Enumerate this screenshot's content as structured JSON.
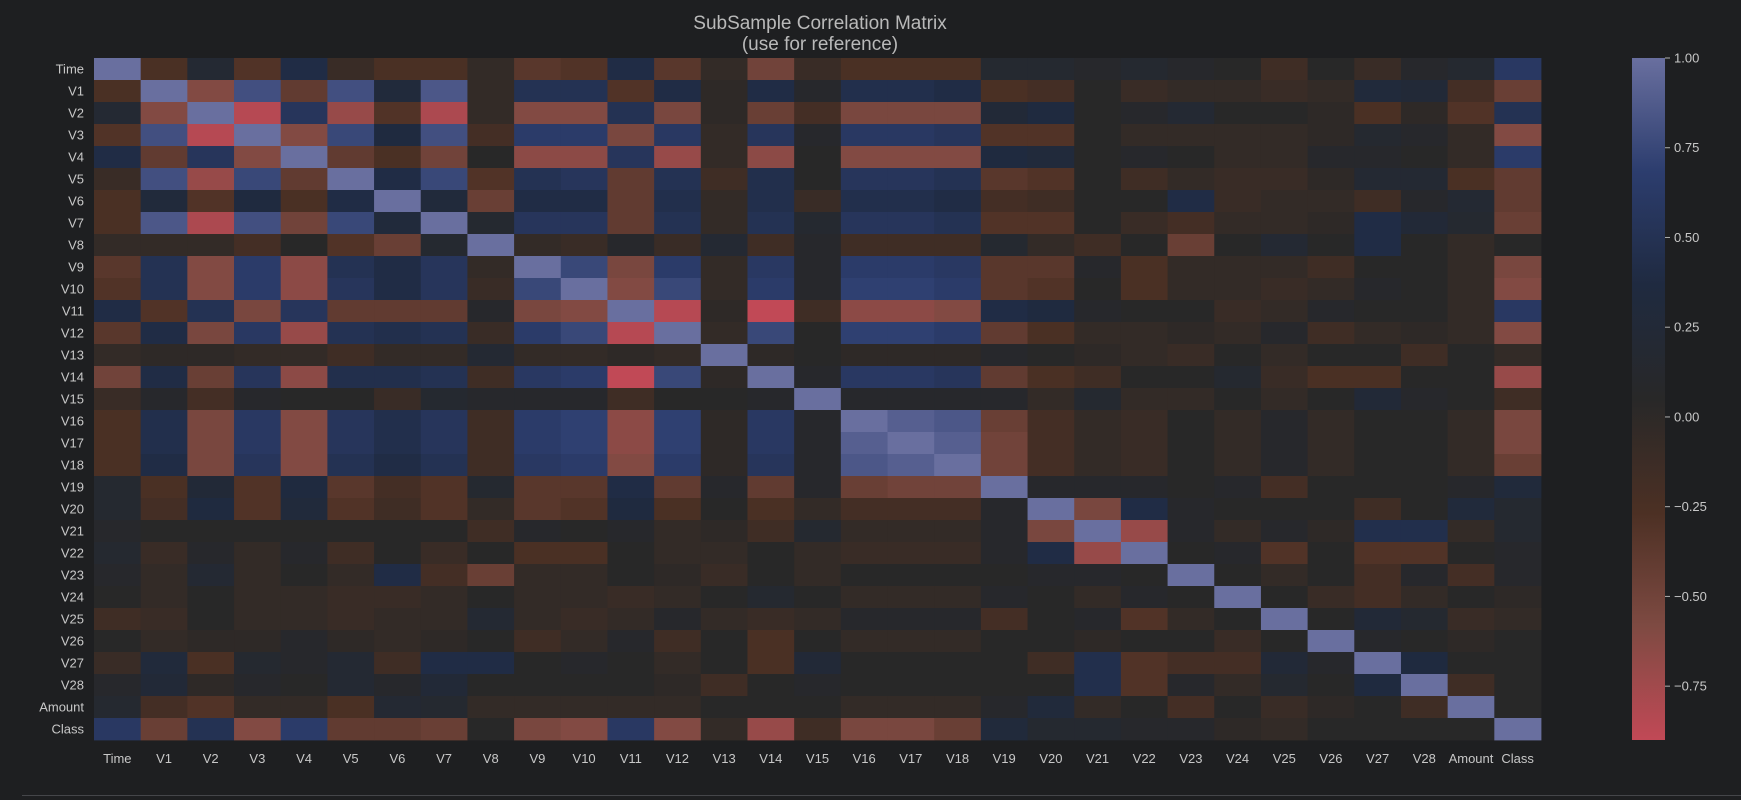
{
  "chart_data": {
    "type": "heatmap",
    "title": "SubSample Correlation Matrix",
    "subtitle": "(use for reference)",
    "labels": [
      "Time",
      "V1",
      "V2",
      "V3",
      "V4",
      "V5",
      "V6",
      "V7",
      "V8",
      "V9",
      "V10",
      "V11",
      "V12",
      "V13",
      "V14",
      "V15",
      "V16",
      "V17",
      "V18",
      "V19",
      "V20",
      "V21",
      "V22",
      "V23",
      "V24",
      "V25",
      "V26",
      "V27",
      "V28",
      "Amount",
      "Class"
    ],
    "vmin": -0.9,
    "vmax": 1.0,
    "colorbar_ticks": [
      "1.00",
      "0.75",
      "0.50",
      "0.25",
      "0.00",
      "−0.25",
      "−0.50",
      "−0.75"
    ],
    "colorbar_tick_values": [
      1.0,
      0.75,
      0.5,
      0.25,
      0.0,
      -0.25,
      -0.5,
      -0.75
    ],
    "colormap": [
      "#c14956",
      "#7e4a42",
      "#4c3024",
      "#282828",
      "#1f2a40",
      "#2c3d6e",
      "#696f9f"
    ],
    "background": "#1e1f21",
    "matrix": [
      [
        1.0,
        -0.25,
        0.2,
        -0.3,
        0.4,
        -0.1,
        -0.25,
        -0.25,
        -0.05,
        -0.35,
        -0.3,
        0.4,
        -0.35,
        -0.05,
        -0.5,
        -0.1,
        -0.25,
        -0.25,
        -0.25,
        0.15,
        0.15,
        0.1,
        0.15,
        0.1,
        0.05,
        -0.15,
        0.05,
        -0.1,
        0.1,
        0.15,
        0.6
      ],
      [
        -0.25,
        1.0,
        -0.6,
        0.8,
        -0.4,
        0.8,
        0.3,
        0.85,
        -0.05,
        0.5,
        0.5,
        -0.3,
        0.4,
        0.0,
        0.4,
        0.1,
        0.45,
        0.45,
        0.4,
        -0.25,
        -0.2,
        0.05,
        -0.1,
        -0.05,
        -0.05,
        -0.1,
        -0.05,
        0.3,
        0.25,
        -0.2,
        -0.45
      ],
      [
        0.2,
        -0.6,
        1.0,
        -0.85,
        0.55,
        -0.7,
        -0.3,
        -0.8,
        -0.05,
        -0.6,
        -0.6,
        0.5,
        -0.55,
        0.0,
        -0.45,
        -0.2,
        -0.55,
        -0.55,
        -0.55,
        0.25,
        0.35,
        0.05,
        0.1,
        0.2,
        0.05,
        0.05,
        0.0,
        -0.25,
        0.0,
        -0.3,
        0.5
      ],
      [
        -0.3,
        0.8,
        -0.85,
        1.0,
        -0.6,
        0.75,
        0.35,
        0.8,
        -0.2,
        0.65,
        0.65,
        -0.55,
        0.6,
        -0.05,
        0.55,
        0.1,
        0.6,
        0.6,
        0.55,
        -0.3,
        -0.3,
        0.05,
        -0.05,
        -0.05,
        -0.05,
        -0.05,
        0.0,
        0.15,
        0.1,
        -0.05,
        -0.6
      ],
      [
        0.4,
        -0.4,
        0.55,
        -0.6,
        1.0,
        -0.4,
        -0.25,
        -0.5,
        0.05,
        -0.65,
        -0.65,
        0.55,
        -0.7,
        -0.05,
        -0.65,
        0.05,
        -0.6,
        -0.6,
        -0.6,
        0.35,
        0.3,
        0.05,
        0.1,
        0.05,
        -0.05,
        -0.05,
        0.1,
        0.1,
        0.05,
        -0.05,
        0.65
      ],
      [
        -0.1,
        0.8,
        -0.7,
        0.75,
        -0.4,
        1.0,
        0.4,
        0.75,
        -0.3,
        0.5,
        0.55,
        -0.4,
        0.5,
        -0.15,
        0.45,
        0.05,
        0.55,
        0.55,
        0.5,
        -0.35,
        -0.3,
        0.05,
        -0.15,
        -0.05,
        -0.1,
        -0.1,
        0.0,
        0.2,
        0.2,
        -0.25,
        -0.4
      ],
      [
        -0.25,
        0.3,
        -0.3,
        0.35,
        -0.25,
        0.4,
        1.0,
        0.3,
        -0.45,
        0.4,
        0.4,
        -0.4,
        0.45,
        -0.05,
        0.45,
        -0.1,
        0.45,
        0.45,
        0.4,
        -0.2,
        -0.15,
        0.05,
        0.05,
        0.4,
        -0.1,
        -0.05,
        -0.05,
        -0.15,
        0.1,
        0.2,
        -0.4
      ],
      [
        -0.25,
        0.85,
        -0.8,
        0.8,
        -0.5,
        0.75,
        0.3,
        1.0,
        0.15,
        0.55,
        0.55,
        -0.4,
        0.5,
        -0.05,
        0.5,
        0.15,
        0.55,
        0.55,
        0.5,
        -0.3,
        -0.3,
        0.05,
        -0.1,
        -0.2,
        -0.05,
        -0.05,
        0.0,
        0.4,
        0.25,
        0.15,
        -0.45
      ],
      [
        -0.05,
        -0.05,
        -0.05,
        -0.2,
        0.05,
        -0.3,
        -0.45,
        0.15,
        1.0,
        -0.05,
        -0.1,
        0.1,
        -0.1,
        0.2,
        -0.15,
        0.1,
        -0.15,
        -0.15,
        -0.15,
        0.15,
        -0.05,
        -0.15,
        0.05,
        -0.45,
        0.05,
        0.2,
        0.05,
        0.4,
        0.05,
        -0.05,
        0.05
      ],
      [
        -0.35,
        0.5,
        -0.6,
        0.65,
        -0.65,
        0.5,
        0.4,
        0.55,
        -0.05,
        1.0,
        0.75,
        -0.55,
        0.65,
        -0.05,
        0.6,
        0.1,
        0.65,
        0.65,
        0.6,
        -0.35,
        -0.35,
        0.1,
        -0.25,
        -0.05,
        -0.05,
        -0.05,
        -0.15,
        0.05,
        0.05,
        -0.05,
        -0.55
      ],
      [
        -0.3,
        0.5,
        -0.6,
        0.65,
        -0.65,
        0.55,
        0.4,
        0.55,
        -0.1,
        0.75,
        1.0,
        -0.6,
        0.75,
        -0.05,
        0.65,
        0.1,
        0.7,
        0.7,
        0.65,
        -0.35,
        -0.3,
        0.05,
        -0.25,
        -0.05,
        -0.05,
        -0.1,
        -0.05,
        0.1,
        0.05,
        -0.05,
        -0.6
      ],
      [
        0.4,
        -0.3,
        0.5,
        -0.55,
        0.55,
        -0.4,
        -0.4,
        -0.4,
        0.1,
        -0.55,
        -0.6,
        1.0,
        -0.85,
        0.0,
        -0.9,
        -0.15,
        -0.65,
        -0.65,
        -0.6,
        0.4,
        0.35,
        0.1,
        0.05,
        0.05,
        -0.1,
        -0.05,
        0.1,
        0.05,
        0.05,
        -0.05,
        0.6
      ],
      [
        -0.35,
        0.4,
        -0.55,
        0.6,
        -0.7,
        0.5,
        0.45,
        0.5,
        -0.1,
        0.65,
        0.75,
        -0.85,
        1.0,
        -0.05,
        0.75,
        0.05,
        0.7,
        0.7,
        0.65,
        -0.4,
        -0.25,
        -0.05,
        -0.05,
        0.0,
        -0.05,
        0.1,
        -0.15,
        -0.05,
        0.0,
        -0.05,
        -0.6
      ],
      [
        -0.05,
        0.0,
        0.0,
        -0.05,
        -0.05,
        -0.15,
        -0.05,
        -0.05,
        0.2,
        -0.05,
        -0.05,
        0.0,
        -0.05,
        1.0,
        0.0,
        0.05,
        0.0,
        0.0,
        0.0,
        0.1,
        0.05,
        0.0,
        -0.05,
        -0.1,
        0.05,
        -0.05,
        0.05,
        0.05,
        -0.15,
        0.05,
        -0.05
      ],
      [
        -0.5,
        0.4,
        -0.45,
        0.55,
        -0.65,
        0.45,
        0.45,
        0.5,
        -0.15,
        0.6,
        0.65,
        -0.9,
        0.75,
        0.0,
        1.0,
        0.1,
        0.6,
        0.6,
        0.55,
        -0.4,
        -0.25,
        -0.15,
        0.05,
        0.05,
        0.15,
        -0.1,
        -0.25,
        -0.25,
        0.05,
        0.05,
        -0.7
      ],
      [
        -0.1,
        0.1,
        -0.2,
        0.1,
        0.05,
        0.05,
        -0.1,
        0.15,
        0.1,
        0.1,
        0.1,
        -0.15,
        0.05,
        0.05,
        0.1,
        1.0,
        0.1,
        0.1,
        0.1,
        0.1,
        -0.05,
        0.15,
        -0.05,
        -0.05,
        0.05,
        -0.05,
        0.05,
        0.25,
        0.1,
        0.05,
        -0.15
      ],
      [
        -0.25,
        0.45,
        -0.55,
        0.6,
        -0.6,
        0.55,
        0.45,
        0.55,
        -0.15,
        0.65,
        0.7,
        -0.65,
        0.7,
        0.0,
        0.6,
        0.1,
        1.0,
        0.9,
        0.85,
        -0.45,
        -0.2,
        -0.05,
        -0.1,
        0.05,
        -0.05,
        0.1,
        -0.05,
        0.05,
        0.05,
        -0.05,
        -0.55
      ],
      [
        -0.25,
        0.45,
        -0.55,
        0.6,
        -0.6,
        0.55,
        0.45,
        0.55,
        -0.15,
        0.65,
        0.7,
        -0.65,
        0.7,
        0.0,
        0.6,
        0.1,
        0.9,
        1.0,
        0.9,
        -0.5,
        -0.2,
        -0.05,
        -0.1,
        0.05,
        -0.05,
        0.1,
        -0.05,
        0.05,
        0.05,
        -0.05,
        -0.55
      ],
      [
        -0.25,
        0.4,
        -0.55,
        0.55,
        -0.6,
        0.5,
        0.4,
        0.5,
        -0.15,
        0.6,
        0.65,
        -0.6,
        0.65,
        0.0,
        0.55,
        0.1,
        0.85,
        0.9,
        1.0,
        -0.5,
        -0.2,
        -0.05,
        -0.1,
        0.05,
        -0.05,
        0.1,
        -0.05,
        0.05,
        0.05,
        -0.05,
        -0.45
      ],
      [
        0.15,
        -0.25,
        0.25,
        -0.3,
        0.35,
        -0.35,
        -0.2,
        -0.3,
        0.15,
        -0.35,
        -0.35,
        0.4,
        -0.4,
        0.1,
        -0.4,
        0.1,
        -0.45,
        -0.5,
        -0.5,
        1.0,
        0.1,
        0.1,
        0.1,
        0.05,
        0.1,
        -0.2,
        0.05,
        0.05,
        0.05,
        0.1,
        0.3
      ],
      [
        0.15,
        -0.2,
        0.35,
        -0.3,
        0.3,
        -0.3,
        -0.15,
        -0.3,
        -0.05,
        -0.35,
        -0.3,
        0.35,
        -0.25,
        0.05,
        -0.25,
        -0.05,
        -0.2,
        -0.2,
        -0.2,
        0.1,
        1.0,
        -0.55,
        0.4,
        0.1,
        0.05,
        0.05,
        0.05,
        -0.15,
        0.05,
        0.3,
        0.15
      ],
      [
        0.1,
        0.05,
        0.05,
        0.05,
        0.05,
        0.05,
        0.05,
        0.05,
        -0.15,
        0.1,
        0.05,
        0.1,
        -0.05,
        0.0,
        -0.15,
        0.15,
        -0.05,
        -0.05,
        -0.05,
        0.1,
        -0.55,
        1.0,
        -0.7,
        0.1,
        -0.05,
        0.1,
        0.0,
        0.45,
        0.45,
        -0.05,
        0.15
      ],
      [
        0.15,
        -0.1,
        0.1,
        -0.05,
        0.1,
        -0.15,
        0.05,
        -0.1,
        0.05,
        -0.25,
        -0.25,
        0.05,
        -0.05,
        -0.05,
        0.05,
        -0.05,
        -0.1,
        -0.1,
        -0.1,
        0.1,
        0.4,
        -0.7,
        1.0,
        0.05,
        0.1,
        -0.3,
        0.05,
        -0.3,
        -0.3,
        0.05,
        0.1
      ],
      [
        0.1,
        -0.05,
        0.2,
        -0.05,
        0.05,
        -0.05,
        0.4,
        -0.2,
        -0.45,
        -0.05,
        -0.05,
        0.05,
        0.0,
        -0.1,
        0.05,
        -0.05,
        0.05,
        0.05,
        0.05,
        0.05,
        0.1,
        0.1,
        0.05,
        1.0,
        0.05,
        -0.05,
        0.05,
        -0.2,
        0.1,
        -0.2,
        0.1
      ],
      [
        0.05,
        -0.05,
        0.05,
        -0.05,
        -0.05,
        -0.1,
        -0.1,
        -0.05,
        0.05,
        -0.05,
        -0.05,
        -0.1,
        -0.05,
        0.05,
        0.15,
        0.05,
        -0.05,
        -0.05,
        -0.05,
        0.1,
        0.05,
        -0.05,
        0.1,
        0.05,
        1.0,
        0.05,
        -0.1,
        -0.2,
        -0.05,
        0.05,
        0.0
      ],
      [
        -0.15,
        -0.1,
        0.05,
        -0.05,
        -0.05,
        -0.1,
        -0.05,
        -0.05,
        0.2,
        -0.05,
        -0.1,
        -0.05,
        0.1,
        -0.05,
        -0.1,
        -0.05,
        0.1,
        0.1,
        0.1,
        -0.2,
        0.05,
        0.1,
        -0.3,
        -0.05,
        0.05,
        1.0,
        0.05,
        0.25,
        0.15,
        -0.1,
        -0.05
      ],
      [
        0.05,
        -0.05,
        0.0,
        0.0,
        0.1,
        0.0,
        -0.05,
        0.0,
        0.05,
        -0.15,
        -0.05,
        0.1,
        -0.15,
        0.05,
        -0.25,
        0.05,
        -0.05,
        -0.05,
        -0.05,
        0.05,
        0.05,
        0.0,
        0.05,
        0.05,
        -0.1,
        0.05,
        1.0,
        0.1,
        0.05,
        0.0,
        0.05
      ],
      [
        -0.1,
        0.3,
        -0.25,
        0.15,
        0.1,
        0.2,
        -0.15,
        0.4,
        0.4,
        0.05,
        0.1,
        0.05,
        -0.05,
        0.05,
        -0.25,
        0.25,
        0.05,
        0.05,
        0.05,
        0.05,
        -0.15,
        0.45,
        -0.3,
        -0.2,
        -0.2,
        0.25,
        0.1,
        1.0,
        0.35,
        0.05,
        0.05
      ],
      [
        0.1,
        0.25,
        0.0,
        0.1,
        0.05,
        0.2,
        0.1,
        0.25,
        0.05,
        0.05,
        0.05,
        0.05,
        0.0,
        -0.15,
        0.05,
        0.1,
        0.05,
        0.05,
        0.05,
        0.05,
        0.05,
        0.45,
        -0.3,
        0.1,
        -0.05,
        0.15,
        0.05,
        0.35,
        1.0,
        -0.15,
        0.05
      ],
      [
        0.15,
        -0.2,
        -0.3,
        -0.05,
        -0.05,
        -0.25,
        0.2,
        0.15,
        -0.05,
        -0.05,
        -0.05,
        -0.05,
        -0.05,
        0.05,
        0.05,
        0.05,
        -0.05,
        -0.05,
        -0.05,
        0.1,
        0.3,
        -0.05,
        0.05,
        -0.2,
        0.05,
        -0.1,
        0.0,
        0.05,
        -0.15,
        1.0,
        0.05
      ],
      [
        0.6,
        -0.45,
        0.5,
        -0.6,
        0.65,
        -0.4,
        -0.4,
        -0.45,
        0.05,
        -0.55,
        -0.6,
        0.6,
        -0.6,
        -0.05,
        -0.7,
        -0.15,
        -0.55,
        -0.55,
        -0.45,
        0.3,
        0.15,
        0.15,
        0.1,
        0.1,
        0.0,
        -0.05,
        0.05,
        0.05,
        0.05,
        0.05,
        1.0
      ]
    ]
  }
}
